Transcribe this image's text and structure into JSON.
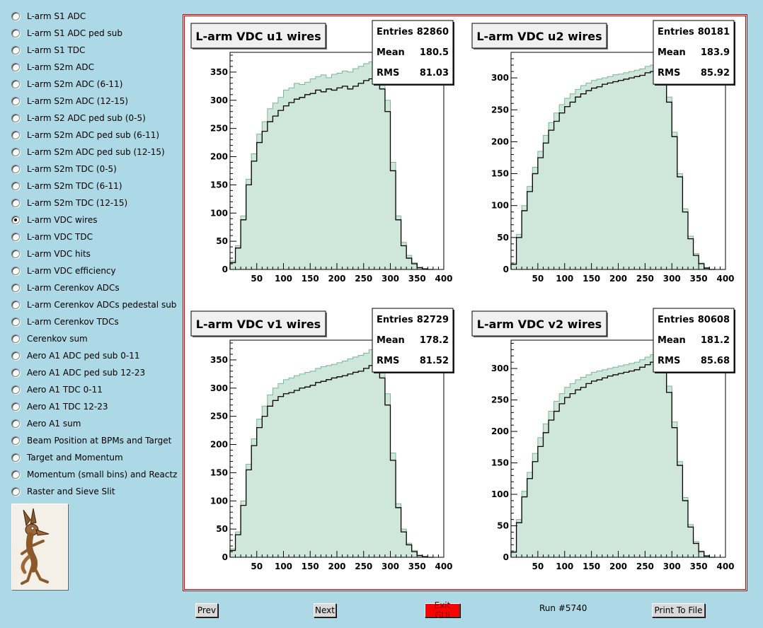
{
  "sidebar": {
    "items": [
      {
        "label": "L-arm S1 ADC",
        "selected": false
      },
      {
        "label": "L-arm S1 ADC ped sub",
        "selected": false
      },
      {
        "label": "L-arm S1 TDC",
        "selected": false
      },
      {
        "label": "L-arm S2m ADC",
        "selected": false
      },
      {
        "label": "L-arm S2m ADC (6-11)",
        "selected": false
      },
      {
        "label": "L-arm S2m ADC (12-15)",
        "selected": false
      },
      {
        "label": "L-arm S2 ADC ped sub (0-5)",
        "selected": false
      },
      {
        "label": "L-arm S2m ADC ped sub (6-11)",
        "selected": false
      },
      {
        "label": "L-arm S2m ADC ped sub (12-15)",
        "selected": false
      },
      {
        "label": "L-arm S2m TDC (0-5)",
        "selected": false
      },
      {
        "label": "L-arm S2m TDC (6-11)",
        "selected": false
      },
      {
        "label": "L-arm S2m TDC (12-15)",
        "selected": false
      },
      {
        "label": "L-arm VDC wires",
        "selected": true
      },
      {
        "label": "L-arm VDC TDC",
        "selected": false
      },
      {
        "label": "L-arm VDC hits",
        "selected": false
      },
      {
        "label": "L-arm VDC efficiency",
        "selected": false
      },
      {
        "label": "L-arm Cerenkov ADCs",
        "selected": false
      },
      {
        "label": "L-arm Cerenkov ADCs pedestal sub",
        "selected": false
      },
      {
        "label": "L-arm Cerenkov TDCs",
        "selected": false
      },
      {
        "label": "Cerenkov sum",
        "selected": false
      },
      {
        "label": "Aero A1 ADC ped sub 0-11",
        "selected": false
      },
      {
        "label": "Aero A1 ADC ped sub 12-23",
        "selected": false
      },
      {
        "label": "Aero A1 TDC 0-11",
        "selected": false
      },
      {
        "label": "Aero A1 TDC 12-23",
        "selected": false
      },
      {
        "label": "Aero A1 sum",
        "selected": false
      },
      {
        "label": "Beam Position at BPMs and Target",
        "selected": false
      },
      {
        "label": "Target and Momentum",
        "selected": false
      },
      {
        "label": "Momentum (small bins) and Reactz",
        "selected": false
      },
      {
        "label": "Raster and Sieve Slit",
        "selected": false
      }
    ],
    "logo_icon": "coyote-logo-icon"
  },
  "stat_labels": {
    "entries": "Entries",
    "mean": "Mean",
    "rms": "RMS"
  },
  "chart_data": [
    {
      "type": "bar",
      "title": "L-arm VDC u1 wires",
      "stats": {
        "entries": "82860",
        "mean": "180.5",
        "rms": "81.03"
      },
      "xlim": [
        0,
        400
      ],
      "ylim": [
        0,
        385
      ],
      "xticks": [
        50,
        100,
        150,
        200,
        250,
        300,
        350,
        400
      ],
      "yticks": [
        0,
        50,
        100,
        150,
        200,
        250,
        300,
        350
      ],
      "grid": false,
      "colors": {
        "fill": "#cfe6dc",
        "reference_line": "#79b59c",
        "current_line": "#000000"
      },
      "series": [
        {
          "x": [
            0,
            10,
            20,
            30,
            40,
            50,
            60,
            70,
            80,
            90,
            100,
            110,
            120,
            130,
            140,
            150,
            160,
            170,
            180,
            190,
            200,
            210,
            220,
            230,
            240,
            250,
            260,
            270,
            280,
            290,
            300,
            310,
            320,
            330,
            340,
            350,
            360,
            370
          ],
          "values": [
            15,
            42,
            95,
            160,
            205,
            240,
            262,
            285,
            295,
            305,
            318,
            322,
            330,
            328,
            332,
            338,
            342,
            345,
            340,
            346,
            348,
            352,
            350,
            356,
            360,
            365,
            368,
            362,
            350,
            300,
            190,
            95,
            48,
            25,
            12,
            4,
            1,
            0
          ]
        },
        {
          "x": [
            0,
            10,
            20,
            30,
            40,
            50,
            60,
            70,
            80,
            90,
            100,
            110,
            120,
            130,
            140,
            150,
            160,
            170,
            180,
            190,
            200,
            210,
            220,
            230,
            240,
            250,
            260,
            270,
            280,
            290,
            300,
            310,
            320,
            330,
            340,
            350,
            360,
            370
          ],
          "values": [
            12,
            38,
            88,
            150,
            192,
            225,
            245,
            262,
            272,
            282,
            290,
            296,
            302,
            305,
            310,
            312,
            318,
            315,
            320,
            318,
            322,
            325,
            320,
            325,
            330,
            335,
            338,
            332,
            320,
            280,
            175,
            88,
            42,
            20,
            10,
            3,
            1,
            0
          ]
        }
      ]
    },
    {
      "type": "bar",
      "title": "L-arm VDC u2 wires",
      "stats": {
        "entries": "80181",
        "mean": "183.9",
        "rms": "85.92"
      },
      "xlim": [
        0,
        400
      ],
      "ylim": [
        0,
        340
      ],
      "xticks": [
        50,
        100,
        150,
        200,
        250,
        300,
        350,
        400
      ],
      "yticks": [
        0,
        50,
        100,
        150,
        200,
        250,
        300
      ],
      "grid": false,
      "colors": {
        "fill": "#cfe6dc",
        "reference_line": "#79b59c",
        "current_line": "#000000"
      },
      "series": [
        {
          "x": [
            0,
            10,
            20,
            30,
            40,
            50,
            60,
            70,
            80,
            90,
            100,
            110,
            120,
            130,
            140,
            150,
            160,
            170,
            180,
            190,
            200,
            210,
            220,
            230,
            240,
            250,
            260,
            270,
            280,
            290,
            300,
            310,
            320,
            330,
            340,
            350,
            360,
            370
          ],
          "values": [
            10,
            55,
            100,
            130,
            160,
            185,
            210,
            230,
            245,
            258,
            268,
            275,
            282,
            288,
            292,
            296,
            298,
            300,
            302,
            305,
            306,
            308,
            310,
            312,
            314,
            318,
            320,
            315,
            305,
            270,
            215,
            150,
            95,
            52,
            25,
            10,
            3,
            0
          ]
        },
        {
          "x": [
            0,
            10,
            20,
            30,
            40,
            50,
            60,
            70,
            80,
            90,
            100,
            110,
            120,
            130,
            140,
            150,
            160,
            170,
            180,
            190,
            200,
            210,
            220,
            230,
            240,
            250,
            260,
            270,
            280,
            290,
            300,
            310,
            320,
            330,
            340,
            350,
            360,
            370
          ],
          "values": [
            8,
            50,
            92,
            122,
            150,
            175,
            198,
            218,
            232,
            245,
            255,
            262,
            270,
            275,
            280,
            284,
            286,
            290,
            292,
            294,
            296,
            298,
            300,
            302,
            304,
            308,
            310,
            305,
            295,
            262,
            208,
            145,
            90,
            48,
            22,
            9,
            2,
            0
          ]
        }
      ]
    },
    {
      "type": "bar",
      "title": "L-arm VDC v1 wires",
      "stats": {
        "entries": "82729",
        "mean": "178.2",
        "rms": "81.52"
      },
      "xlim": [
        0,
        400
      ],
      "ylim": [
        0,
        385
      ],
      "xticks": [
        50,
        100,
        150,
        200,
        250,
        300,
        350,
        400
      ],
      "yticks": [
        0,
        50,
        100,
        150,
        200,
        250,
        300,
        350
      ],
      "grid": false,
      "colors": {
        "fill": "#cfe6dc",
        "reference_line": "#79b59c",
        "current_line": "#000000"
      },
      "series": [
        {
          "x": [
            0,
            10,
            20,
            30,
            40,
            50,
            60,
            70,
            80,
            90,
            100,
            110,
            120,
            130,
            140,
            150,
            160,
            170,
            180,
            190,
            200,
            210,
            220,
            230,
            240,
            250,
            260,
            270,
            280,
            290,
            300,
            310,
            320,
            330,
            340,
            350,
            360,
            370
          ],
          "values": [
            15,
            45,
            100,
            165,
            210,
            245,
            268,
            288,
            300,
            308,
            315,
            318,
            322,
            325,
            328,
            330,
            335,
            338,
            340,
            342,
            345,
            348,
            352,
            355,
            358,
            362,
            368,
            360,
            345,
            290,
            185,
            95,
            50,
            25,
            12,
            4,
            1,
            0
          ]
        },
        {
          "x": [
            0,
            10,
            20,
            30,
            40,
            50,
            60,
            70,
            80,
            90,
            100,
            110,
            120,
            130,
            140,
            150,
            160,
            170,
            180,
            190,
            200,
            210,
            220,
            230,
            240,
            250,
            260,
            270,
            280,
            290,
            300,
            310,
            320,
            330,
            340,
            350,
            360,
            370
          ],
          "values": [
            12,
            40,
            92,
            155,
            198,
            230,
            250,
            268,
            278,
            285,
            290,
            292,
            296,
            300,
            302,
            305,
            310,
            312,
            315,
            318,
            320,
            322,
            325,
            328,
            330,
            335,
            340,
            332,
            318,
            270,
            172,
            88,
            45,
            22,
            10,
            3,
            1,
            0
          ]
        }
      ]
    },
    {
      "type": "bar",
      "title": "L-arm VDC v2 wires",
      "stats": {
        "entries": "80608",
        "mean": "181.2",
        "rms": "85.68"
      },
      "xlim": [
        0,
        400
      ],
      "ylim": [
        0,
        345
      ],
      "xticks": [
        50,
        100,
        150,
        200,
        250,
        300,
        350,
        400
      ],
      "yticks": [
        0,
        50,
        100,
        150,
        200,
        250,
        300
      ],
      "grid": false,
      "colors": {
        "fill": "#cfe6dc",
        "reference_line": "#79b59c",
        "current_line": "#000000"
      },
      "series": [
        {
          "x": [
            0,
            10,
            20,
            30,
            40,
            50,
            60,
            70,
            80,
            90,
            100,
            110,
            120,
            130,
            140,
            150,
            160,
            170,
            180,
            190,
            200,
            210,
            220,
            230,
            240,
            250,
            260,
            270,
            280,
            290,
            300,
            310,
            320,
            330,
            340,
            350,
            360,
            370
          ],
          "values": [
            10,
            60,
            105,
            135,
            165,
            190,
            212,
            232,
            248,
            260,
            270,
            276,
            282,
            286,
            290,
            294,
            296,
            298,
            300,
            302,
            304,
            306,
            308,
            310,
            314,
            318,
            322,
            316,
            305,
            272,
            215,
            152,
            95,
            52,
            25,
            10,
            3,
            0
          ]
        },
        {
          "x": [
            0,
            10,
            20,
            30,
            40,
            50,
            60,
            70,
            80,
            90,
            100,
            110,
            120,
            130,
            140,
            150,
            160,
            170,
            180,
            190,
            200,
            210,
            220,
            230,
            240,
            250,
            260,
            270,
            280,
            290,
            300,
            310,
            320,
            330,
            340,
            350,
            360,
            370
          ],
          "values": [
            8,
            55,
            96,
            125,
            152,
            176,
            198,
            218,
            232,
            244,
            254,
            260,
            266,
            270,
            276,
            280,
            282,
            285,
            288,
            290,
            292,
            294,
            296,
            298,
            302,
            306,
            310,
            305,
            294,
            262,
            206,
            146,
            90,
            48,
            22,
            9,
            2,
            0
          ]
        }
      ]
    }
  ],
  "footer": {
    "prev_label": "Prev",
    "next_label": "Next",
    "exit_label": "Exit GUI",
    "run_label": "Run #5740",
    "print_label": "Print To File",
    "exit_color": "#ff0000"
  }
}
